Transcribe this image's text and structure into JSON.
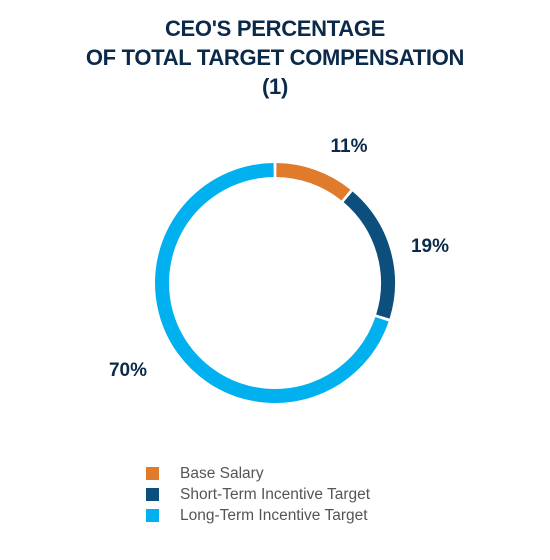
{
  "chart_data": {
    "type": "pie",
    "variant": "donut",
    "title": [
      "CEO'S PERCENTAGE",
      "OF TOTAL TARGET COMPENSATION",
      "(1)"
    ],
    "categories": [
      "Base Salary",
      "Short-Term Incentive Target",
      "Long-Term Incentive Target"
    ],
    "values": [
      11,
      19,
      70
    ],
    "value_labels": [
      "11%",
      "19%",
      "70%"
    ],
    "colors": [
      "#e07b2b",
      "#0d4f7c",
      "#00b0ef"
    ],
    "legend_position": "bottom",
    "start_angle": "top",
    "direction": "clockwise"
  }
}
